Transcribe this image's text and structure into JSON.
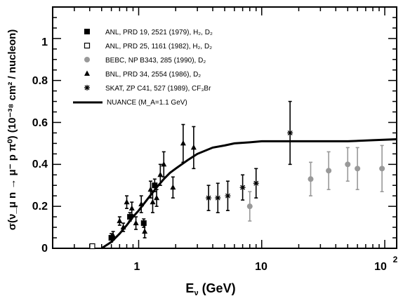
{
  "chart_data": {
    "type": "scatter",
    "xscale": "log",
    "xlim": [
      0.2,
      125
    ],
    "ylim": [
      0,
      1.15
    ],
    "xlabel_main": "E",
    "xlabel_sub": "ν",
    "xlabel_rest": " (GeV)",
    "ylabel": "σ(ν_μ n → μ⁻ p π⁰) (10⁻³⁸ cm² / nucleon)",
    "x_tick_labels": [
      "1",
      "10",
      "10"
    ],
    "x_tick_sup": "2",
    "y_ticks": [
      0,
      0.2,
      0.4,
      0.6,
      0.8,
      1
    ],
    "y_tick_labels": [
      "0",
      "0.2",
      "0.4",
      "0.6",
      "0.8",
      "1"
    ],
    "legend": [
      {
        "marker": "square-filled",
        "text": "ANL, PRD 19, 2521 (1979), H₂, D₂"
      },
      {
        "marker": "square-open",
        "text": "ANL, PRD 25, 1161 (1982), H₂, D₂"
      },
      {
        "marker": "circle-gray",
        "text": "BEBC, NP B343, 285 (1990), D₂"
      },
      {
        "marker": "triangle",
        "text": "BNL, PRD 34, 2554 (1986), D₂"
      },
      {
        "marker": "star",
        "text": "SKAT, ZP C41, 527 (1989), CF₃Br"
      },
      {
        "marker": "line",
        "text": "NUANCE (M_A=1.1 GeV)"
      }
    ],
    "colors": {
      "black": "#000000",
      "gray": "#999999"
    },
    "series": [
      {
        "name": "ANL, PRD 19, 2521 (1979), H₂, D₂",
        "marker": "square-filled",
        "points": [
          {
            "x": 0.6,
            "y": 0.05,
            "err": 0.02
          },
          {
            "x": 0.85,
            "y": 0.15,
            "err": 0.02
          },
          {
            "x": 1.1,
            "y": 0.12,
            "err": 0.02
          },
          {
            "x": 1.35,
            "y": 0.3,
            "err": 0.03
          }
        ]
      },
      {
        "name": "ANL, PRD 25, 1161 (1982), H₂, D₂",
        "marker": "square-open",
        "points": [
          {
            "x": 0.42,
            "y": 0.01,
            "err": 0.0
          }
        ]
      },
      {
        "name": "BEBC, NP B343, 285 (1990), D₂",
        "marker": "circle-gray",
        "points": [
          {
            "x": 8,
            "y": 0.2,
            "err": 0.07
          },
          {
            "x": 25,
            "y": 0.33,
            "err": 0.08
          },
          {
            "x": 35,
            "y": 0.37,
            "err": 0.09
          },
          {
            "x": 50,
            "y": 0.4,
            "err": 0.08
          },
          {
            "x": 60,
            "y": 0.38,
            "err": 0.1
          },
          {
            "x": 95,
            "y": 0.38,
            "err": 0.11
          }
        ]
      },
      {
        "name": "BNL, PRD 34, 2554 (1986), D₂",
        "marker": "triangle",
        "points": [
          {
            "x": 0.62,
            "y": 0.06,
            "err": 0.02
          },
          {
            "x": 0.7,
            "y": 0.13,
            "err": 0.02
          },
          {
            "x": 0.75,
            "y": 0.1,
            "err": 0.02
          },
          {
            "x": 0.8,
            "y": 0.22,
            "err": 0.03
          },
          {
            "x": 0.88,
            "y": 0.19,
            "err": 0.03
          },
          {
            "x": 0.95,
            "y": 0.12,
            "err": 0.03
          },
          {
            "x": 1.05,
            "y": 0.21,
            "err": 0.04
          },
          {
            "x": 1.12,
            "y": 0.08,
            "err": 0.03
          },
          {
            "x": 1.25,
            "y": 0.28,
            "err": 0.04
          },
          {
            "x": 1.3,
            "y": 0.22,
            "err": 0.05
          },
          {
            "x": 1.4,
            "y": 0.24,
            "err": 0.04
          },
          {
            "x": 1.5,
            "y": 0.35,
            "err": 0.05
          },
          {
            "x": 1.6,
            "y": 0.4,
            "err": 0.06
          },
          {
            "x": 1.9,
            "y": 0.29,
            "err": 0.05
          },
          {
            "x": 2.3,
            "y": 0.5,
            "err": 0.09
          },
          {
            "x": 2.8,
            "y": 0.48,
            "err": 0.1
          }
        ]
      },
      {
        "name": "SKAT, ZP C41, 527 (1989), CF₃Br",
        "marker": "star",
        "points": [
          {
            "x": 3.7,
            "y": 0.24,
            "err": 0.06
          },
          {
            "x": 4.4,
            "y": 0.24,
            "err": 0.07
          },
          {
            "x": 5.3,
            "y": 0.25,
            "err": 0.07
          },
          {
            "x": 7.0,
            "y": 0.29,
            "err": 0.06
          },
          {
            "x": 9.0,
            "y": 0.31,
            "err": 0.07
          },
          {
            "x": 17,
            "y": 0.55,
            "err": 0.15
          }
        ]
      }
    ],
    "curve": {
      "name": "NUANCE (M_A=1.1 GeV)",
      "x": [
        0.5,
        0.6,
        0.7,
        0.8,
        0.9,
        1.0,
        1.2,
        1.4,
        1.6,
        1.8,
        2.0,
        2.5,
        3.0,
        4.0,
        5.0,
        6.0,
        8.0,
        10,
        15,
        20,
        30,
        50,
        80,
        125
      ],
      "y": [
        0.0,
        0.03,
        0.07,
        0.11,
        0.15,
        0.18,
        0.24,
        0.29,
        0.33,
        0.36,
        0.38,
        0.42,
        0.45,
        0.48,
        0.49,
        0.5,
        0.505,
        0.51,
        0.51,
        0.51,
        0.51,
        0.51,
        0.515,
        0.52
      ]
    }
  }
}
